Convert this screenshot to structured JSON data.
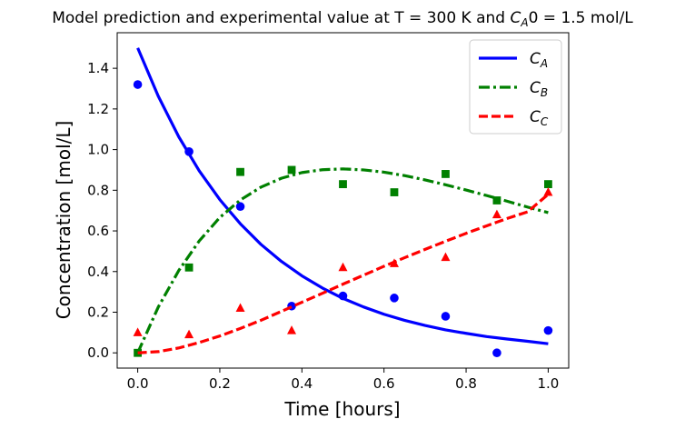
{
  "chart_data": {
    "type": "line",
    "title_prefix": "Model prediction and experimental value at T = 300 K and ",
    "title_sym": "C",
    "title_sub": "A",
    "title_suffix": "0 = 1.5 mol/L",
    "xlabel": "Time [hours]",
    "ylabel": "Concentration [mol/L]",
    "xlim": [
      -0.05,
      1.05
    ],
    "ylim": [
      -0.075,
      1.575
    ],
    "xticks": [
      0.0,
      0.2,
      0.4,
      0.6,
      0.8,
      1.0
    ],
    "yticks": [
      0.0,
      0.2,
      0.4,
      0.6,
      0.8,
      1.0,
      1.2,
      1.4
    ],
    "xtick_labels": [
      "0.0",
      "0.2",
      "0.4",
      "0.6",
      "0.8",
      "1.0"
    ],
    "ytick_labels": [
      "0.0",
      "0.2",
      "0.4",
      "0.6",
      "0.8",
      "1.0",
      "1.2",
      "1.4"
    ],
    "grid": false,
    "legend_position": "top-right",
    "x": [
      0.0,
      0.125,
      0.25,
      0.375,
      0.5,
      0.625,
      0.75,
      0.875,
      1.0
    ],
    "model_x": [
      0.0,
      0.05,
      0.1,
      0.15,
      0.2,
      0.25,
      0.3,
      0.35,
      0.4,
      0.45,
      0.5,
      0.55,
      0.6,
      0.65,
      0.7,
      0.75,
      0.8,
      0.85,
      0.9,
      0.95,
      1.0
    ],
    "series": [
      {
        "name": "C",
        "sub": "A",
        "color": "#0000ff",
        "line_style": "solid",
        "marker": "circle",
        "model": [
          1.5,
          1.263,
          1.063,
          0.895,
          0.754,
          0.635,
          0.534,
          0.45,
          0.379,
          0.319,
          0.268,
          0.226,
          0.19,
          0.16,
          0.135,
          0.113,
          0.096,
          0.08,
          0.068,
          0.057,
          0.045
        ],
        "observed": [
          1.32,
          0.99,
          0.72,
          0.23,
          0.28,
          0.27,
          0.18,
          0.0,
          0.11
        ]
      },
      {
        "name": "C",
        "sub": "B",
        "color": "#008000",
        "line_style": "dashdot",
        "marker": "square",
        "model": [
          0.0,
          0.225,
          0.405,
          0.551,
          0.666,
          0.752,
          0.815,
          0.859,
          0.887,
          0.901,
          0.905,
          0.9,
          0.889,
          0.872,
          0.851,
          0.827,
          0.801,
          0.774,
          0.746,
          0.717,
          0.69
        ],
        "observed": [
          0.0,
          0.42,
          0.89,
          0.9,
          0.83,
          0.79,
          0.88,
          0.75,
          0.83
        ]
      },
      {
        "name": "C",
        "sub": "C",
        "color": "#ff0000",
        "line_style": "dashed",
        "marker": "triangle",
        "model": [
          0.0,
          0.006,
          0.024,
          0.051,
          0.083,
          0.12,
          0.16,
          0.204,
          0.249,
          0.293,
          0.338,
          0.382,
          0.426,
          0.468,
          0.509,
          0.549,
          0.588,
          0.625,
          0.661,
          0.694,
          0.78
        ],
        "observed": [
          0.1,
          0.09,
          0.22,
          0.11,
          0.42,
          0.44,
          0.47,
          0.68,
          0.79
        ]
      }
    ]
  }
}
